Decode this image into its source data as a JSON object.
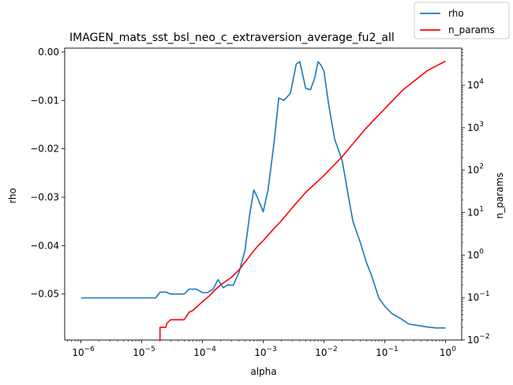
{
  "chart_data": {
    "type": "line",
    "title": "IMAGEN_mats_sst_bsl_neo_c_extraversion_average_fu2_all",
    "xlabel": "alpha",
    "ylabel_left": "rho",
    "ylabel_right": "n_params",
    "x_scale": "log",
    "y_right_scale": "log",
    "xlim": [
      5.4e-07,
      1.85
    ],
    "ylim_left": [
      -0.0595,
      0.0008
    ],
    "ylim_right": [
      0.01,
      75000
    ],
    "x_ticks": [
      {
        "value": 1e-06,
        "base": "10",
        "exp": "−6"
      },
      {
        "value": 1e-05,
        "base": "10",
        "exp": "−5"
      },
      {
        "value": 0.0001,
        "base": "10",
        "exp": "−4"
      },
      {
        "value": 0.001,
        "base": "10",
        "exp": "−3"
      },
      {
        "value": 0.01,
        "base": "10",
        "exp": "−2"
      },
      {
        "value": 0.1,
        "base": "10",
        "exp": "−1"
      },
      {
        "value": 1,
        "base": "10",
        "exp": "0"
      }
    ],
    "y_left_ticks": [
      {
        "value": 0.0,
        "label": "0.00"
      },
      {
        "value": -0.01,
        "label": "−0.01"
      },
      {
        "value": -0.02,
        "label": "−0.02"
      },
      {
        "value": -0.03,
        "label": "−0.03"
      },
      {
        "value": -0.04,
        "label": "−0.04"
      },
      {
        "value": -0.05,
        "label": "−0.05"
      }
    ],
    "y_right_ticks": [
      {
        "value": 0.01,
        "base": "10",
        "exp": "−2"
      },
      {
        "value": 0.1,
        "base": "10",
        "exp": "−1"
      },
      {
        "value": 1,
        "base": "10",
        "exp": "0"
      },
      {
        "value": 10,
        "base": "10",
        "exp": "1"
      },
      {
        "value": 100,
        "base": "10",
        "exp": "2"
      },
      {
        "value": 1000,
        "base": "10",
        "exp": "3"
      },
      {
        "value": 10000,
        "base": "10",
        "exp": "4"
      }
    ],
    "legend": {
      "placement": "top-right (figure)",
      "entries": [
        "rho",
        "n_params"
      ]
    },
    "series": [
      {
        "name": "rho",
        "axis": "left",
        "color": "#1f77b4",
        "x": [
          1e-06,
          1.2e-06,
          1.5e-06,
          2e-06,
          3e-06,
          5e-06,
          8e-06,
          1e-05,
          1.3e-05,
          1.7e-05,
          2e-05,
          2.5e-05,
          3e-05,
          4e-05,
          5e-05,
          6e-05,
          7e-05,
          8e-05,
          0.0001,
          0.00012,
          0.00015,
          0.00018,
          0.00022,
          0.00026,
          0.00032,
          0.0004,
          0.0005,
          0.0006,
          0.0007,
          0.0008,
          0.001,
          0.0012,
          0.0015,
          0.0018,
          0.0022,
          0.0028,
          0.0035,
          0.004,
          0.005,
          0.006,
          0.007,
          0.008,
          0.009,
          0.01,
          0.012,
          0.015,
          0.02,
          0.025,
          0.03,
          0.04,
          0.05,
          0.06,
          0.08,
          0.1,
          0.13,
          0.18,
          0.25,
          0.35,
          0.5,
          0.7,
          1.0
        ],
        "y": [
          -0.0508,
          -0.0508,
          -0.0508,
          -0.0508,
          -0.0508,
          -0.0508,
          -0.0508,
          -0.0508,
          -0.0508,
          -0.0508,
          -0.0496,
          -0.0496,
          -0.05,
          -0.05,
          -0.05,
          -0.049,
          -0.049,
          -0.049,
          -0.0497,
          -0.0497,
          -0.049,
          -0.047,
          -0.0487,
          -0.0481,
          -0.0482,
          -0.0455,
          -0.041,
          -0.0335,
          -0.0285,
          -0.03,
          -0.033,
          -0.0285,
          -0.019,
          -0.0095,
          -0.01,
          -0.0085,
          -0.0025,
          -0.002,
          -0.0075,
          -0.0078,
          -0.0055,
          -0.002,
          -0.0028,
          -0.004,
          -0.011,
          -0.018,
          -0.0225,
          -0.0295,
          -0.035,
          -0.0395,
          -0.0435,
          -0.046,
          -0.0508,
          -0.0525,
          -0.054,
          -0.055,
          -0.0562,
          -0.0565,
          -0.0568,
          -0.057,
          -0.057
        ]
      },
      {
        "name": "n_params",
        "axis": "right",
        "color": "#ff0000",
        "x": [
          2e-05,
          2.000001e-05,
          2.5e-05,
          2.6e-05,
          3e-05,
          3.5e-05,
          4e-05,
          5e-05,
          6e-05,
          7e-05,
          8e-05,
          0.0001,
          0.00013,
          0.00016,
          0.0002,
          0.0003,
          0.0004,
          0.0006,
          0.0008,
          0.001,
          0.0015,
          0.002,
          0.003,
          0.005,
          0.01,
          0.02,
          0.05,
          0.1,
          0.2,
          0.5,
          1.0
        ],
        "y": [
          0.01,
          0.02,
          0.02,
          0.025,
          0.03,
          0.03,
          0.03,
          0.03,
          0.045,
          0.05,
          0.06,
          0.08,
          0.11,
          0.15,
          0.2,
          0.3,
          0.45,
          0.95,
          1.6,
          2.2,
          4.2,
          6.5,
          13,
          30,
          75,
          210,
          1000,
          2800,
          7800,
          22000,
          37000
        ]
      }
    ]
  }
}
